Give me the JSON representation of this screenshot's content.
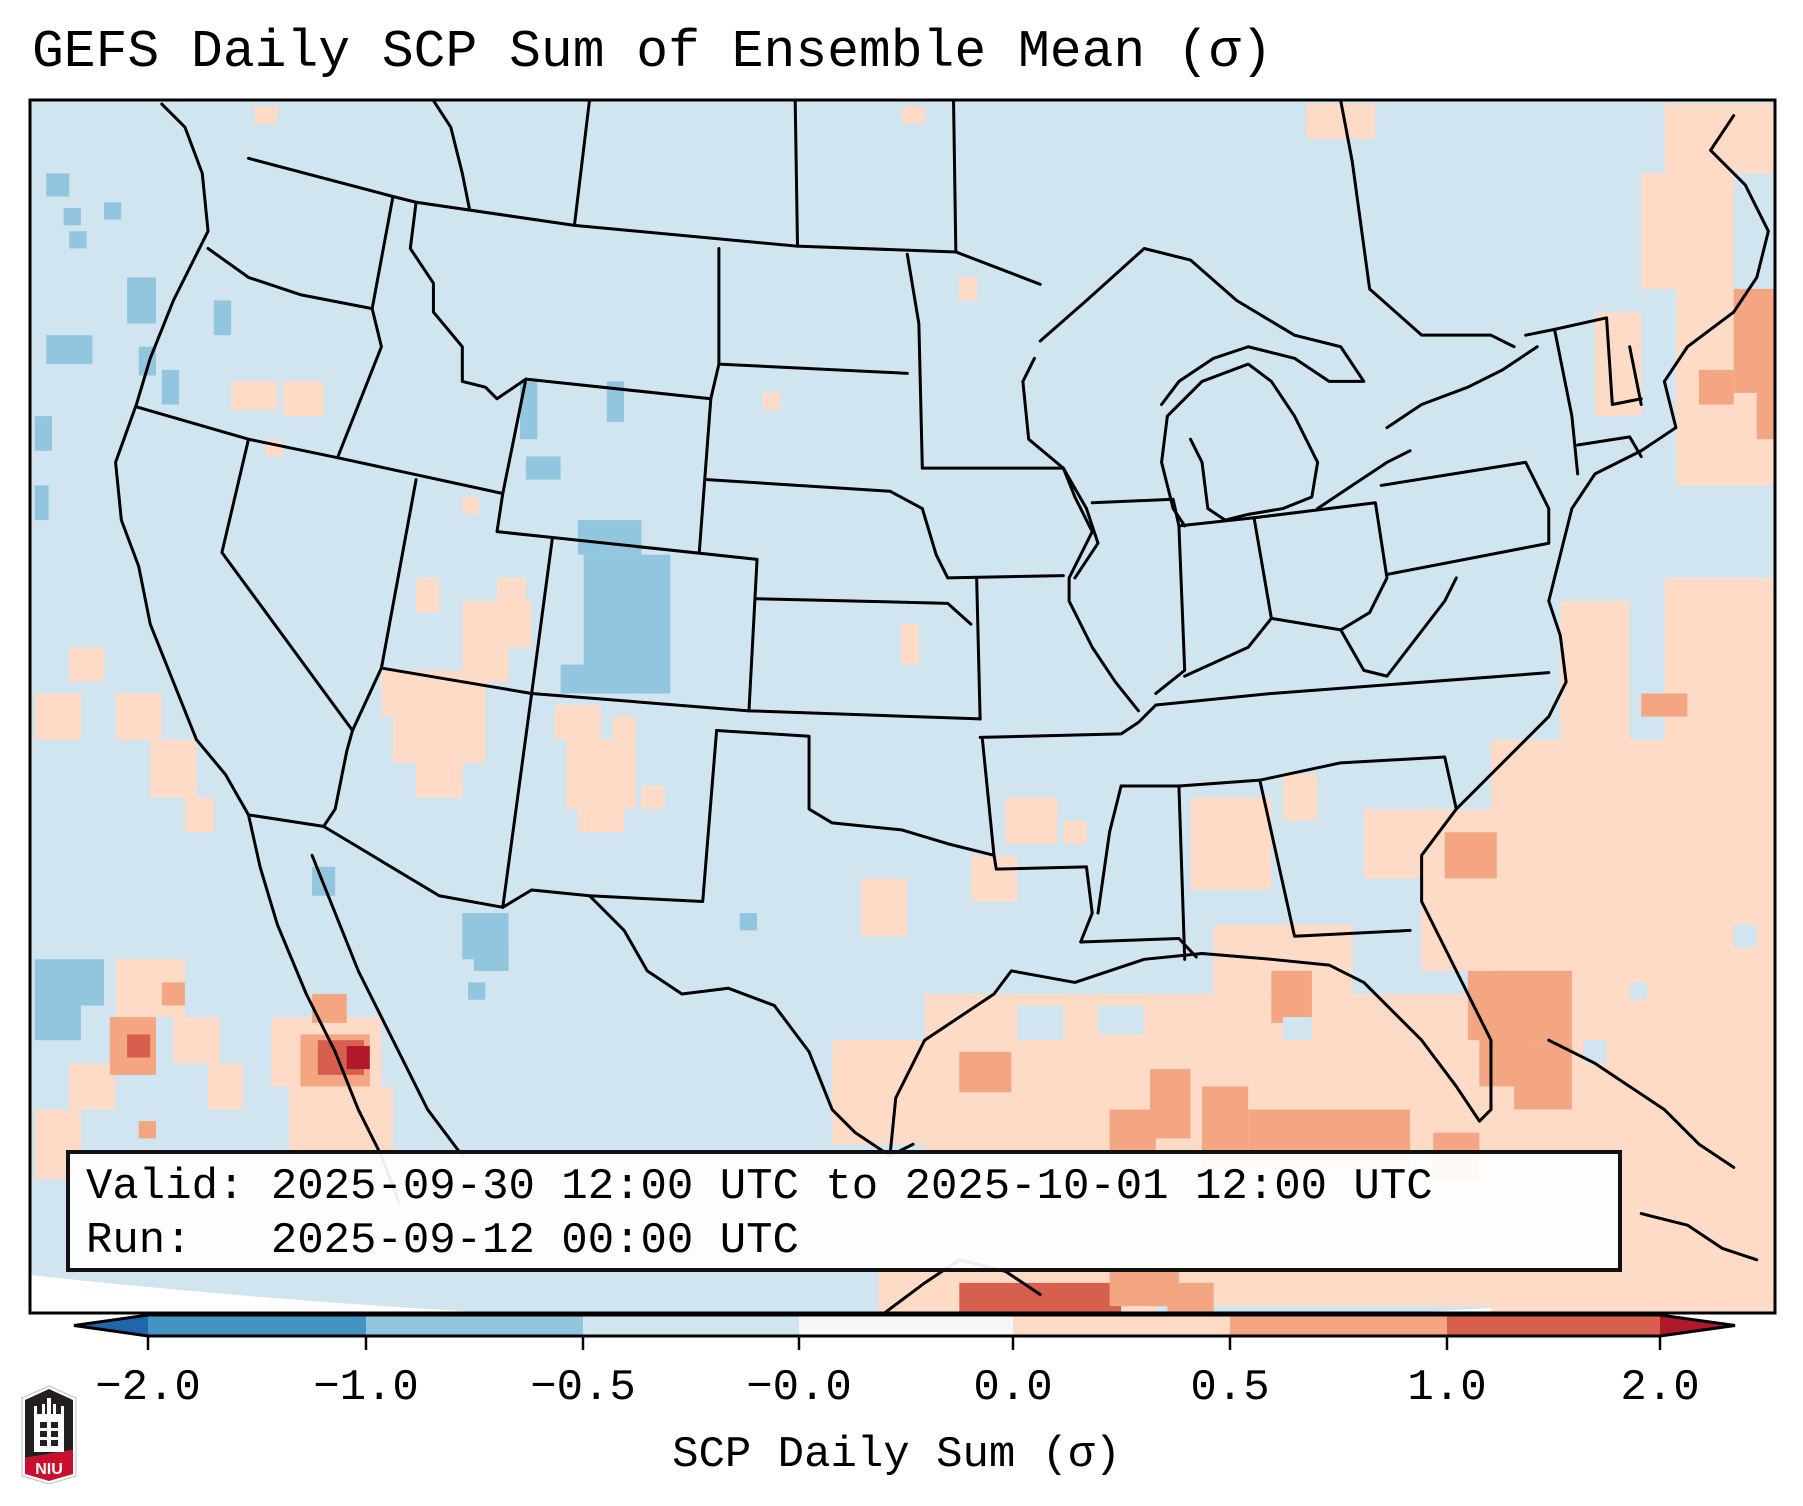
{
  "title": "GEFS Daily SCP Sum of Ensemble Mean (σ)",
  "info": {
    "valid_label": "Valid:",
    "valid_value": "2025-09-30 12:00 UTC to 2025-10-01 12:00 UTC",
    "run_label": "Run:",
    "run_value": "2025-09-12 00:00 UTC"
  },
  "colorbar": {
    "label": "SCP Daily Sum (σ)",
    "ticks": [
      "−2.0",
      "−1.0",
      "−0.5",
      "−0.0",
      "0.0",
      "0.5",
      "1.0",
      "2.0"
    ],
    "bins": [
      {
        "range": "< -2.0",
        "color": "#2166ac"
      },
      {
        "range": "-2.0 to -1.0",
        "color": "#4393c3"
      },
      {
        "range": "-1.0 to -0.5",
        "color": "#92c5de"
      },
      {
        "range": "-0.5 to -0.0",
        "color": "#d1e5f0"
      },
      {
        "range": "-0.0 to 0.0",
        "color": "#f7f7f7"
      },
      {
        "range": "0.0 to 0.5",
        "color": "#fddbc7"
      },
      {
        "range": "0.5 to 1.0",
        "color": "#f4a582"
      },
      {
        "range": "1.0 to 2.0",
        "color": "#d6604d"
      },
      {
        "range": "> 2.0",
        "color": "#b2182b"
      }
    ],
    "extend": "both"
  },
  "map": {
    "region": "Continental United States",
    "background_color": "#d1e5f0",
    "border_color": "#000000"
  },
  "logo": {
    "text": "NIU",
    "colors": {
      "top": "#231f20",
      "bottom": "#c8102e"
    }
  }
}
